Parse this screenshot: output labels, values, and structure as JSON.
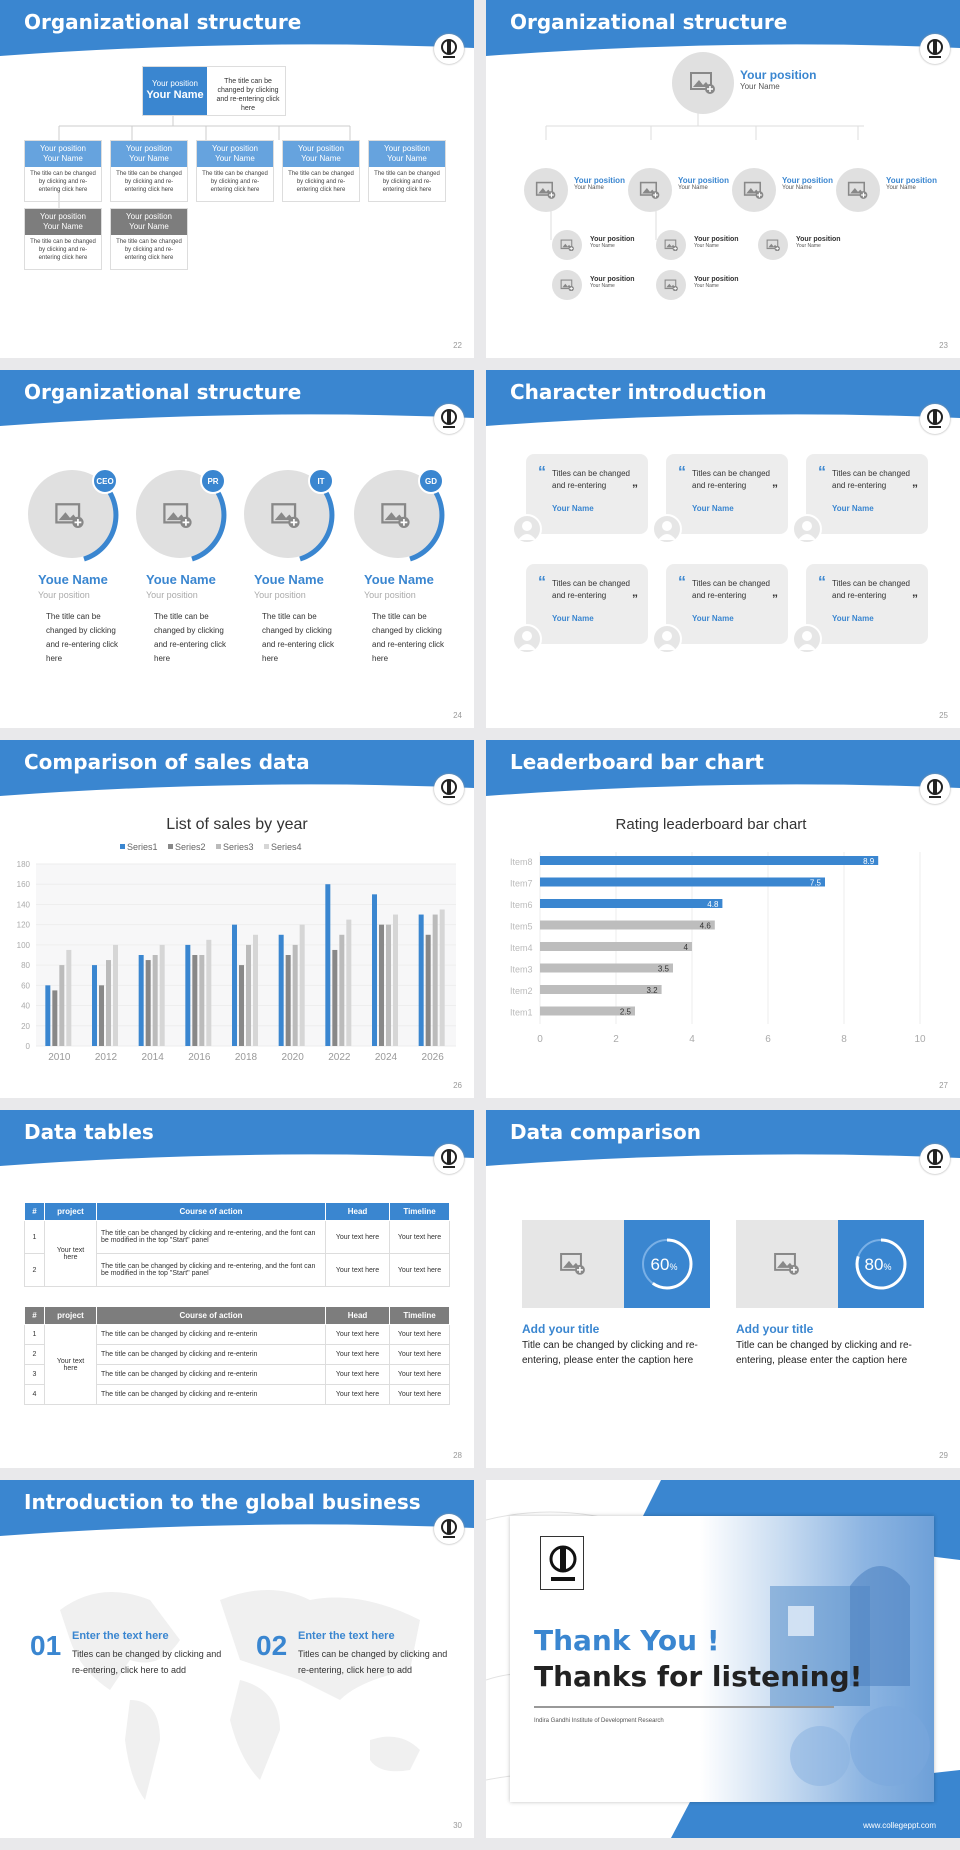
{
  "slides": {
    "s22": {
      "title": "Organizational structure",
      "page": "22",
      "top": {
        "position": "Your position",
        "name": "Your Name",
        "desc": "The title can be changed by clicking and re-entering click here"
      },
      "row1": [
        {
          "position": "Your position",
          "name": "Your Name",
          "desc": "The title can be changed by clicking and re-entering click here"
        },
        {
          "position": "Your position",
          "name": "Your Name",
          "desc": "The title can be changed by clicking and re-entering click here"
        },
        {
          "position": "Your position",
          "name": "Your Name",
          "desc": "The title can be changed by clicking and re-entering click here"
        },
        {
          "position": "Your position",
          "name": "Your Name",
          "desc": "The title can be changed by clicking and re-entering click here"
        },
        {
          "position": "Your position",
          "name": "Your Name",
          "desc": "The title can be changed by clicking and re-entering click here"
        }
      ],
      "row2": [
        {
          "position": "Your position",
          "name": "Your Name",
          "desc": "The title can be changed by clicking and re-entering click here"
        },
        {
          "position": "Your position",
          "name": "Your Name",
          "desc": "The title can be changed by clicking and re-entering click here"
        }
      ]
    },
    "s23": {
      "title": "Organizational structure",
      "page": "23",
      "top": {
        "position": "Your position",
        "name": "Your Name"
      },
      "mid": [
        {
          "position": "Your position",
          "name": "Your Name"
        },
        {
          "position": "Your position",
          "name": "Your Name"
        },
        {
          "position": "Your position",
          "name": "Your Name"
        },
        {
          "position": "Your position",
          "name": "Your Name"
        }
      ],
      "sub": [
        {
          "position": "Your position",
          "name": "Your Name"
        },
        {
          "position": "Your position",
          "name": "Your Name"
        },
        {
          "position": "Your position",
          "name": "Your Name"
        },
        {
          "position": "Your position",
          "name": "Your Name"
        },
        {
          "position": "Your position",
          "name": "Your Name"
        },
        {
          "position": "Your position",
          "name": "Your Name"
        }
      ]
    },
    "s24": {
      "title": "Organizational structure",
      "page": "24",
      "people": [
        {
          "tag": "CEO",
          "name": "Youe Name",
          "position": "Your position",
          "desc": "The title can be changed by clicking and re-entering click here"
        },
        {
          "tag": "PR",
          "name": "Youe Name",
          "position": "Your position",
          "desc": "The title can be changed by clicking and re-entering click here"
        },
        {
          "tag": "IT",
          "name": "Youe Name",
          "position": "Your position",
          "desc": "The title can be changed by clicking and re-entering click here"
        },
        {
          "tag": "GD",
          "name": "Youe Name",
          "position": "Your position",
          "desc": "The title can be changed by clicking and re-entering click here"
        }
      ]
    },
    "s25": {
      "title": "Character introduction",
      "page": "25",
      "cards": [
        {
          "text": "Titles can be changed and re-entering",
          "name": "Your Name"
        },
        {
          "text": "Titles can be changed and re-entering",
          "name": "Your Name"
        },
        {
          "text": "Titles can be changed and re-entering",
          "name": "Your Name"
        },
        {
          "text": "Titles can be changed and re-entering",
          "name": "Your Name"
        },
        {
          "text": "Titles can be changed and re-entering",
          "name": "Your Name"
        },
        {
          "text": "Titles can be changed and re-entering",
          "name": "Your Name"
        }
      ]
    },
    "s26": {
      "title": "Comparison of sales data",
      "page": "26"
    },
    "s27": {
      "title": "Leaderboard bar chart",
      "page": "27"
    },
    "s28": {
      "title": "Data tables",
      "page": "28",
      "headers": [
        "#",
        "project",
        "Course of action",
        "Head",
        "Timeline"
      ],
      "t1": {
        "project": "Your text here",
        "rows": [
          {
            "n": "1",
            "action": "The title can be changed by clicking and re-entering, and the font can be modified in the top \"Start\" panel",
            "head": "Your text here",
            "time": "Your text here"
          },
          {
            "n": "2",
            "action": "The title can be changed by clicking and re-entering, and the font can be modified in the top \"Start\" panel",
            "head": "Your text here",
            "time": "Your text here"
          }
        ]
      },
      "t2": {
        "project": "Your text here",
        "rows": [
          {
            "n": "1",
            "action": "The title can be changed by clicking and re-enterin",
            "head": "Your text here",
            "time": "Your text here"
          },
          {
            "n": "2",
            "action": "The title can be changed by clicking and re-enterin",
            "head": "Your text here",
            "time": "Your text here"
          },
          {
            "n": "3",
            "action": "The title can be changed by clicking and re-enterin",
            "head": "Your text here",
            "time": "Your text here"
          },
          {
            "n": "4",
            "action": "The title can be changed by clicking and re-enterin",
            "head": "Your text here",
            "time": "Your text here"
          }
        ]
      }
    },
    "s29": {
      "title": "Data comparison",
      "page": "29",
      "items": [
        {
          "percent": 60,
          "label": "60",
          "unit": "%",
          "heading": "Add your title",
          "desc": "Title can be changed by clicking and re-entering, please enter the caption here"
        },
        {
          "percent": 80,
          "label": "80",
          "unit": "%",
          "heading": "Add your title",
          "desc": "Title can be changed by clicking and re-entering, please enter the caption here"
        }
      ]
    },
    "s30": {
      "title": "Introduction to the global business",
      "page": "30",
      "items": [
        {
          "num": "01",
          "heading": "Enter the text here",
          "desc": "Titles can be changed by clicking and re-entering, click here to add"
        },
        {
          "num": "02",
          "heading": "Enter the text here",
          "desc": "Titles can be changed by clicking and re-entering, click here to add"
        }
      ]
    },
    "s31": {
      "thanks1": "Thank You !",
      "thanks2": "Thanks for listening!",
      "org": "Indira Gandhi Institute of Development Research",
      "url": "www.collegeppt.com"
    }
  },
  "chart_data": [
    {
      "type": "bar",
      "title": "List of sales by year",
      "categories": [
        "2010",
        "2012",
        "2014",
        "2016",
        "2018",
        "2020",
        "2022",
        "2024",
        "2026"
      ],
      "series": [
        {
          "name": "Series1",
          "color": "#3a86d0",
          "values": [
            60,
            80,
            90,
            100,
            120,
            110,
            160,
            150,
            130
          ]
        },
        {
          "name": "Series2",
          "color": "#888888",
          "values": [
            55,
            60,
            85,
            90,
            80,
            90,
            95,
            120,
            110
          ]
        },
        {
          "name": "Series3",
          "color": "#bbbbbb",
          "values": [
            80,
            85,
            90,
            90,
            100,
            100,
            110,
            120,
            130
          ]
        },
        {
          "name": "Series4",
          "color": "#d6d6d6",
          "values": [
            95,
            100,
            100,
            105,
            110,
            120,
            125,
            130,
            135
          ]
        }
      ],
      "ylim": [
        0,
        180
      ],
      "yticks": [
        0,
        20,
        40,
        60,
        80,
        100,
        120,
        140,
        160,
        180
      ],
      "legend": "top"
    },
    {
      "type": "bar",
      "orientation": "horizontal",
      "title": "Rating leaderboard bar chart",
      "categories": [
        "Item8",
        "Item7",
        "Item6",
        "Item5",
        "Item4",
        "Item3",
        "Item2",
        "Item1"
      ],
      "values": [
        8.9,
        7.5,
        4.8,
        4.6,
        4,
        3.5,
        3.2,
        2.5
      ],
      "labels": [
        "8.9",
        "7.5",
        "4.8",
        "4.6",
        "4",
        "3.5",
        "3.2",
        "2.5"
      ],
      "colors": {
        "highlight": "#3a86d0",
        "normal": "#bdbdbd"
      },
      "highlight_count": 3,
      "xlim": [
        0,
        10
      ],
      "xticks": [
        0,
        2,
        4,
        6,
        8,
        10
      ]
    }
  ]
}
